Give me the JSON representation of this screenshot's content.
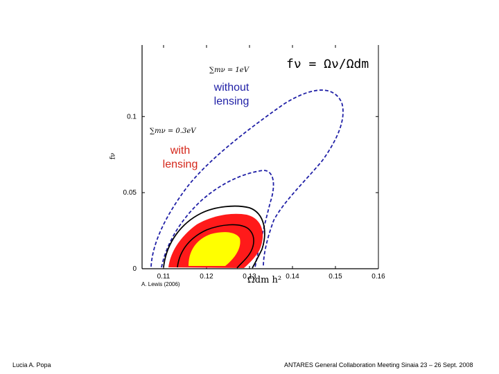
{
  "chart_data": {
    "type": "contour",
    "title": "",
    "annotation_formula": "fν = Ων/Ωdm",
    "xlabel": "Ωdm h²",
    "ylabel": "fν",
    "xlim": [
      0.105,
      0.16
    ],
    "ylim": [
      0,
      0.147
    ],
    "x_ticks": [
      0.11,
      0.12,
      0.13,
      0.14,
      0.15,
      0.16
    ],
    "x_tick_labels": [
      "0.11",
      "0.12",
      "0.13",
      "0.14",
      "0.15",
      "0.16"
    ],
    "y_ticks": [
      0,
      0.05,
      0.1
    ],
    "y_tick_labels": [
      "0",
      "0.05",
      "0.1"
    ],
    "series": [
      {
        "name": "without lensing",
        "style": "dashed",
        "color": "#1f1fa6"
      },
      {
        "name": "with lensing",
        "style": "filled",
        "colors": [
          "#ff1a1a",
          "#ffff00"
        ]
      }
    ],
    "annotations": {
      "without_lensing": "without lensing",
      "with_lensing": "with lensing",
      "sum_1eV": "∑mν = 1eV",
      "sum_03eV": "∑mν = 0.3eV"
    },
    "credit": "A. Lewis (2006)"
  },
  "footer": {
    "author": "Lucia A. Popa",
    "event": "ANTARES General Collaboration Meeting Sinaia 23 – 26 Sept. 2008"
  },
  "colors": {
    "blue_dashed": "#1f1fa6",
    "red_fill": "#ff1a1a",
    "yellow_fill": "#ffff00",
    "black_contour": "#000000"
  }
}
